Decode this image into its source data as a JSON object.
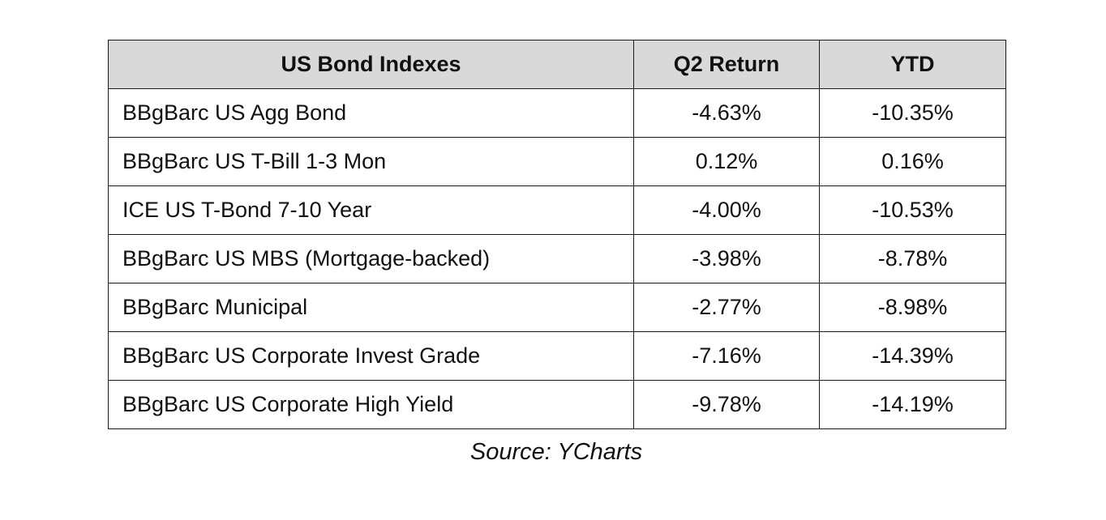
{
  "table": {
    "headers": [
      "US Bond Indexes",
      "Q2 Return",
      "YTD"
    ],
    "rows": [
      {
        "index": "BBgBarc US Agg Bond",
        "q2": "-4.63%",
        "ytd": "-10.35%"
      },
      {
        "index": "BBgBarc US T-Bill 1-3 Mon",
        "q2": "0.12%",
        "ytd": "0.16%"
      },
      {
        "index": "ICE US T-Bond 7-10 Year",
        "q2": "-4.00%",
        "ytd": "-10.53%"
      },
      {
        "index": "BBgBarc US MBS (Mortgage-backed)",
        "q2": "-3.98%",
        "ytd": "-8.78%"
      },
      {
        "index": "BBgBarc Municipal",
        "q2": "-2.77%",
        "ytd": "-8.98%"
      },
      {
        "index": "BBgBarc US Corporate Invest Grade",
        "q2": "-7.16%",
        "ytd": "-14.39%"
      },
      {
        "index": "BBgBarc US Corporate High Yield",
        "q2": "-9.78%",
        "ytd": "-14.19%"
      }
    ]
  },
  "source": "Source: YCharts",
  "colors": {
    "header_bg": "#d9d9d9",
    "border": "#1a1a1a",
    "text": "#111111"
  }
}
